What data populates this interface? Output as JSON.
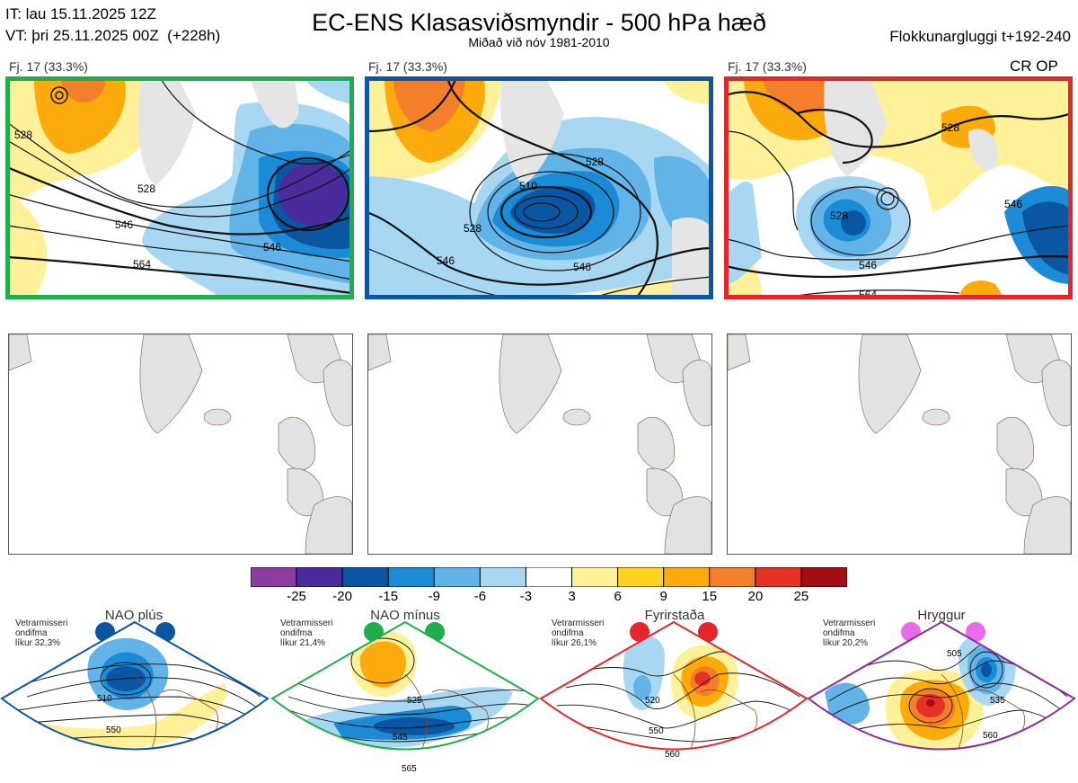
{
  "header": {
    "init_time": "IT: lau 15.11.2025 12Z",
    "valid_time": "VT: þri 25.11.2025 00Z  (+228h)",
    "title": "EC-ENS Klasasviðsmyndir - 500 hPa hæð",
    "subtitle": "Miðað við nóv 1981-2010",
    "window": "Flokkunargluggi t+192-240"
  },
  "clusters": [
    {
      "label": "Fj. 17 (33.3%)",
      "frame_color": "#1fae4b",
      "extra": "",
      "contours": [
        "528",
        "528",
        "546",
        "546",
        "564"
      ]
    },
    {
      "label": "Fj. 17 (33.3%)",
      "frame_color": "#0b55a3",
      "extra": "",
      "contours": [
        "510",
        "528",
        "528",
        "546",
        "546"
      ]
    },
    {
      "label": "Fj. 17 (33.3%)",
      "frame_color": "#e3262b",
      "extra": "CR OP",
      "contours": [
        "528",
        "528",
        "546",
        "546",
        "564"
      ]
    }
  ],
  "colorbar": {
    "colors": [
      "#8a3d9e",
      "#4a2b9b",
      "#0b56a3",
      "#1b8bd6",
      "#62b4e8",
      "#a8d7f2",
      "#ffffff",
      "#fff19a",
      "#ffd21f",
      "#fdaa0d",
      "#f47f2a",
      "#e63127",
      "#a30d14"
    ],
    "ticks": [
      "-25",
      "-20",
      "-15",
      "-9",
      "-6",
      "-3",
      "3",
      "6",
      "9",
      "15",
      "20",
      "25"
    ]
  },
  "regimes": [
    {
      "name": "NAO plús",
      "prob_label": "Vetrarmisseri\nondifma\nlíkur 32,3%",
      "color": "#0b55a3",
      "contours": [
        "510",
        "550"
      ]
    },
    {
      "name": "NAO mínus",
      "prob_label": "Vetrarmisseri\nondifma\nlíkur 21,4%",
      "color": "#1fae4b",
      "contours": [
        "525",
        "545",
        "565"
      ]
    },
    {
      "name": "Fyrirstaða",
      "prob_label": "Vetrarmisseri\nondifma\nlíkur 26,1%",
      "color": "#e3262b",
      "contours": [
        "520",
        "550",
        "560"
      ]
    },
    {
      "name": "Hryggur",
      "prob_label": "Vetrarmisseri\nondifma\nlíkur 20,2%",
      "color": "#ea6be8",
      "contours": [
        "505",
        "535",
        "560"
      ]
    }
  ]
}
